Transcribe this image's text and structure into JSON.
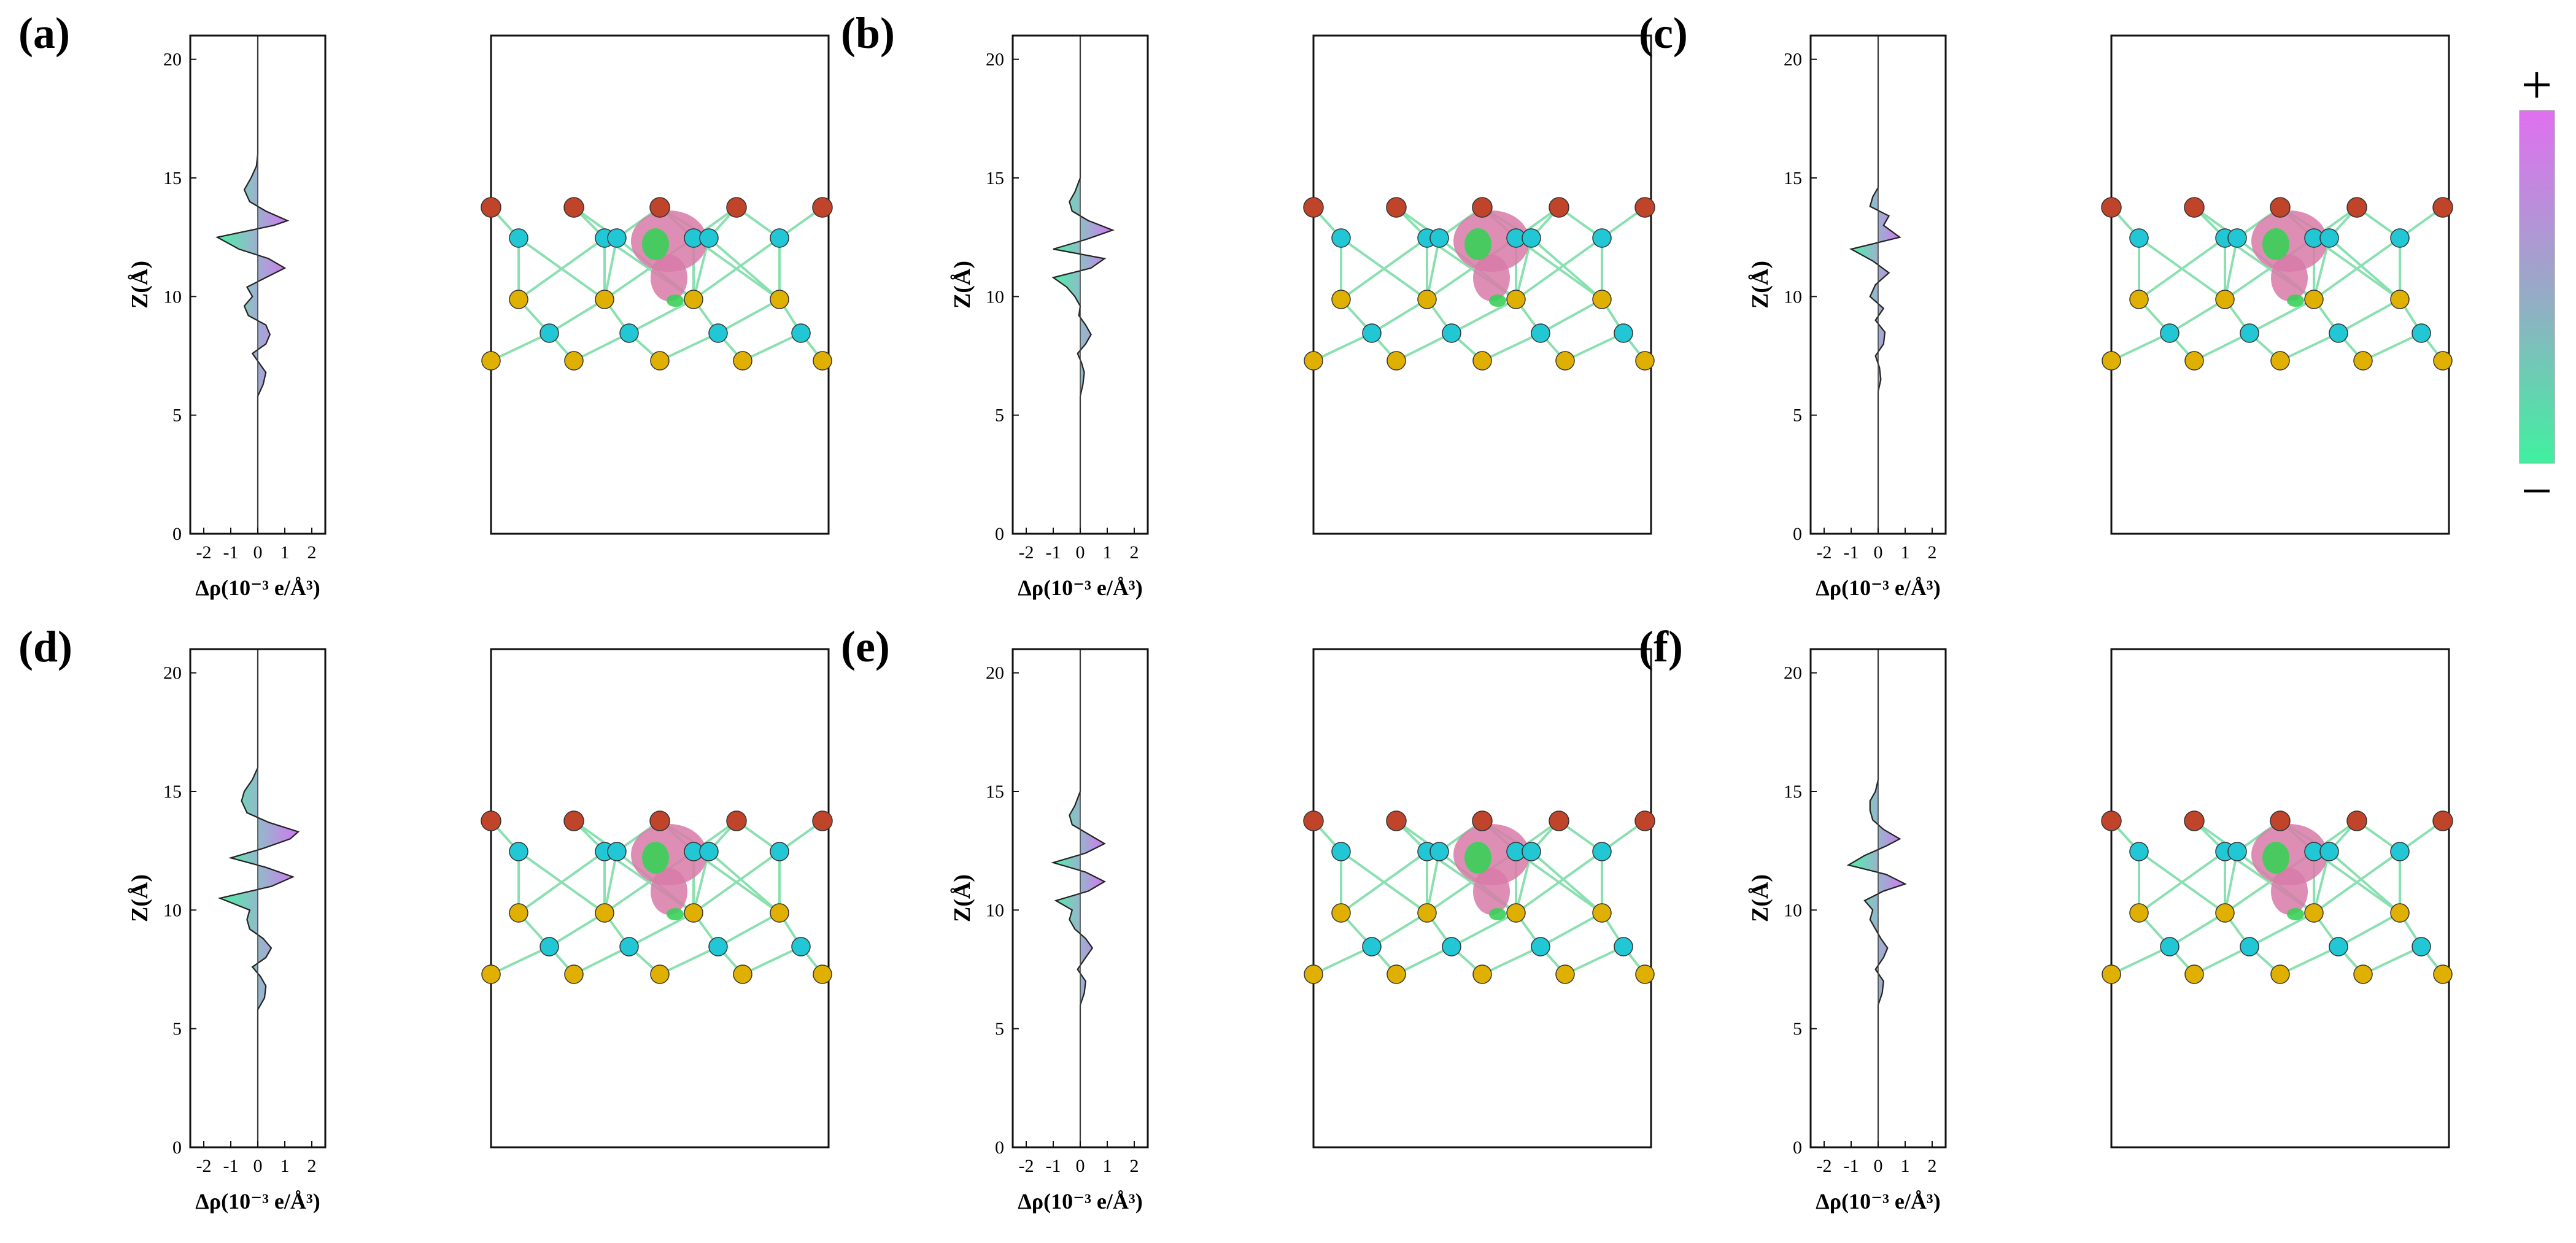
{
  "figure": {
    "colorbar": {
      "plus": "+",
      "minus": "−",
      "top_color": "#e070f0",
      "mid_color": "#9aa8c8",
      "bottom_color": "#40f0a0"
    },
    "colors": {
      "negative": "#40f0a0",
      "positive": "#d070f0",
      "zero": "#8fb4c8",
      "atom_red": "#c0442a",
      "atom_cyan": "#22c7d6",
      "atom_yellow": "#e0b000",
      "iso_pink": "#d87aa8",
      "iso_green": "#38d058"
    }
  },
  "chart_data": [
    {
      "type": "area",
      "panel": "(a)",
      "title": "(a)",
      "xlabel": "Δρ(10⁻³ e/Å³)",
      "ylabel": "Z(Å)",
      "xlim": [
        -2.5,
        2.5
      ],
      "ylim": [
        0,
        21
      ],
      "xticks": [
        "-2",
        "-1",
        "0",
        "1",
        "2"
      ],
      "yticks": [
        "0",
        "5",
        "10",
        "15",
        "20"
      ],
      "z": [
        0,
        5.8,
        6.3,
        6.8,
        7.2,
        7.6,
        8.0,
        8.4,
        8.8,
        9.2,
        9.6,
        10.0,
        10.4,
        10.8,
        11.2,
        11.6,
        12.0,
        12.5,
        13.0,
        13.2,
        13.6,
        14.0,
        14.5,
        15.0,
        15.5,
        16.0,
        21
      ],
      "dp": [
        0,
        0,
        0.2,
        0.3,
        0.05,
        -0.2,
        0.3,
        0.45,
        0.3,
        -0.35,
        -0.5,
        -0.2,
        -0.4,
        0.3,
        1.0,
        0.4,
        -0.7,
        -1.5,
        0.6,
        1.1,
        0.3,
        -0.3,
        -0.5,
        -0.25,
        -0.05,
        0,
        0
      ]
    },
    {
      "type": "area",
      "panel": "(b)",
      "title": "(b)",
      "xlabel": "Δρ(10⁻³ e/Å³)",
      "ylabel": "Z(Å)",
      "xlim": [
        -2.5,
        2.5
      ],
      "ylim": [
        0,
        21
      ],
      "xticks": [
        "-2",
        "-1",
        "0",
        "1",
        "2"
      ],
      "yticks": [
        "0",
        "5",
        "10",
        "15",
        "20"
      ],
      "z": [
        0,
        5.8,
        6.3,
        6.8,
        7.2,
        7.6,
        8.0,
        8.4,
        8.8,
        9.2,
        9.6,
        10.0,
        10.4,
        10.8,
        11.2,
        11.6,
        12.0,
        12.4,
        12.8,
        13.2,
        13.6,
        14.0,
        14.4,
        15.0,
        21
      ],
      "dp": [
        0,
        0,
        0.1,
        0.15,
        0.05,
        -0.1,
        0.2,
        0.4,
        0.2,
        -0.05,
        0,
        -0.2,
        -0.5,
        -1.0,
        0.4,
        0.9,
        -1.0,
        0.2,
        1.2,
        0.3,
        -0.3,
        -0.4,
        -0.2,
        0,
        0
      ]
    },
    {
      "type": "area",
      "panel": "(c)",
      "title": "(c)",
      "xlabel": "Δρ(10⁻³ e/Å³)",
      "ylabel": "Z(Å)",
      "xlim": [
        -2.5,
        2.5
      ],
      "ylim": [
        0,
        21
      ],
      "xticks": [
        "-2",
        "-1",
        "0",
        "1",
        "2"
      ],
      "yticks": [
        "0",
        "5",
        "10",
        "15",
        "20"
      ],
      "z": [
        0,
        6.0,
        6.5,
        7.0,
        7.5,
        8.0,
        8.5,
        9.0,
        9.5,
        10.0,
        10.5,
        11.0,
        11.5,
        12.0,
        12.5,
        13.0,
        13.4,
        13.8,
        14.2,
        14.6,
        21
      ],
      "dp": [
        0,
        0,
        0.1,
        0.05,
        -0.1,
        0.2,
        0.25,
        -0.1,
        0.2,
        -0.3,
        -0.1,
        0.4,
        -0.2,
        -1.0,
        0.8,
        0.2,
        0.4,
        -0.3,
        -0.2,
        0,
        0
      ]
    },
    {
      "type": "area",
      "panel": "(d)",
      "title": "(d)",
      "xlabel": "Δρ(10⁻³ e/Å³)",
      "ylabel": "Z(Å)",
      "xlim": [
        -2.5,
        2.5
      ],
      "ylim": [
        0,
        21
      ],
      "xticks": [
        "-2",
        "-1",
        "0",
        "1",
        "2"
      ],
      "yticks": [
        "0",
        "5",
        "10",
        "15",
        "20"
      ],
      "z": [
        0,
        5.8,
        6.3,
        6.8,
        7.2,
        7.6,
        8.0,
        8.4,
        8.8,
        9.2,
        9.6,
        10.0,
        10.5,
        11.0,
        11.4,
        11.8,
        12.2,
        12.6,
        13.0,
        13.3,
        13.7,
        14.1,
        14.6,
        15.0,
        15.5,
        16.0,
        21
      ],
      "dp": [
        0,
        0,
        0.25,
        0.3,
        0.1,
        -0.2,
        0.3,
        0.5,
        0.2,
        -0.3,
        -0.4,
        -0.3,
        -1.4,
        0.5,
        1.3,
        0.3,
        -1.0,
        0.2,
        1.2,
        1.5,
        0.4,
        -0.4,
        -0.6,
        -0.5,
        -0.2,
        0,
        0
      ]
    },
    {
      "type": "area",
      "panel": "(e)",
      "title": "(e)",
      "xlabel": "Δρ(10⁻³ e/Å³)",
      "ylabel": "Z(Å)",
      "xlim": [
        -2.5,
        2.5
      ],
      "ylim": [
        0,
        21
      ],
      "xticks": [
        "-2",
        "-1",
        "0",
        "1",
        "2"
      ],
      "yticks": [
        "0",
        "5",
        "10",
        "15",
        "20"
      ],
      "z": [
        0,
        6.0,
        6.5,
        7.0,
        7.5,
        8.0,
        8.4,
        8.8,
        9.2,
        9.6,
        10.0,
        10.4,
        10.8,
        11.2,
        11.6,
        12.0,
        12.4,
        12.8,
        13.2,
        13.6,
        14.0,
        14.4,
        15.0,
        21
      ],
      "dp": [
        0,
        0,
        0.15,
        0.2,
        -0.1,
        0.2,
        0.45,
        0.2,
        -0.2,
        -0.4,
        -0.3,
        -0.9,
        0.3,
        0.9,
        0.2,
        -1.0,
        0.2,
        0.9,
        0.3,
        -0.3,
        -0.4,
        -0.2,
        0,
        0
      ]
    },
    {
      "type": "area",
      "panel": "(f)",
      "title": "(f)",
      "xlabel": "Δρ(10⁻³ e/Å³)",
      "ylabel": "Z(Å)",
      "xlim": [
        -2.5,
        2.5
      ],
      "ylim": [
        0,
        21
      ],
      "xticks": [
        "-2",
        "-1",
        "0",
        "1",
        "2"
      ],
      "yticks": [
        "0",
        "5",
        "10",
        "15",
        "20"
      ],
      "z": [
        0,
        6.0,
        6.5,
        7.0,
        7.5,
        8.0,
        8.4,
        8.8,
        9.2,
        9.6,
        10.0,
        10.4,
        10.8,
        11.1,
        11.5,
        11.9,
        12.3,
        12.7,
        13.0,
        13.4,
        13.8,
        14.2,
        14.6,
        15.0,
        15.5,
        21
      ],
      "dp": [
        0,
        0,
        0.15,
        0.2,
        -0.1,
        0.2,
        0.35,
        0.1,
        -0.1,
        -0.3,
        -0.2,
        -0.5,
        0.2,
        1.0,
        0.3,
        -1.1,
        -0.5,
        0.3,
        0.8,
        0.2,
        -0.2,
        -0.3,
        -0.3,
        -0.1,
        0,
        0
      ]
    }
  ]
}
